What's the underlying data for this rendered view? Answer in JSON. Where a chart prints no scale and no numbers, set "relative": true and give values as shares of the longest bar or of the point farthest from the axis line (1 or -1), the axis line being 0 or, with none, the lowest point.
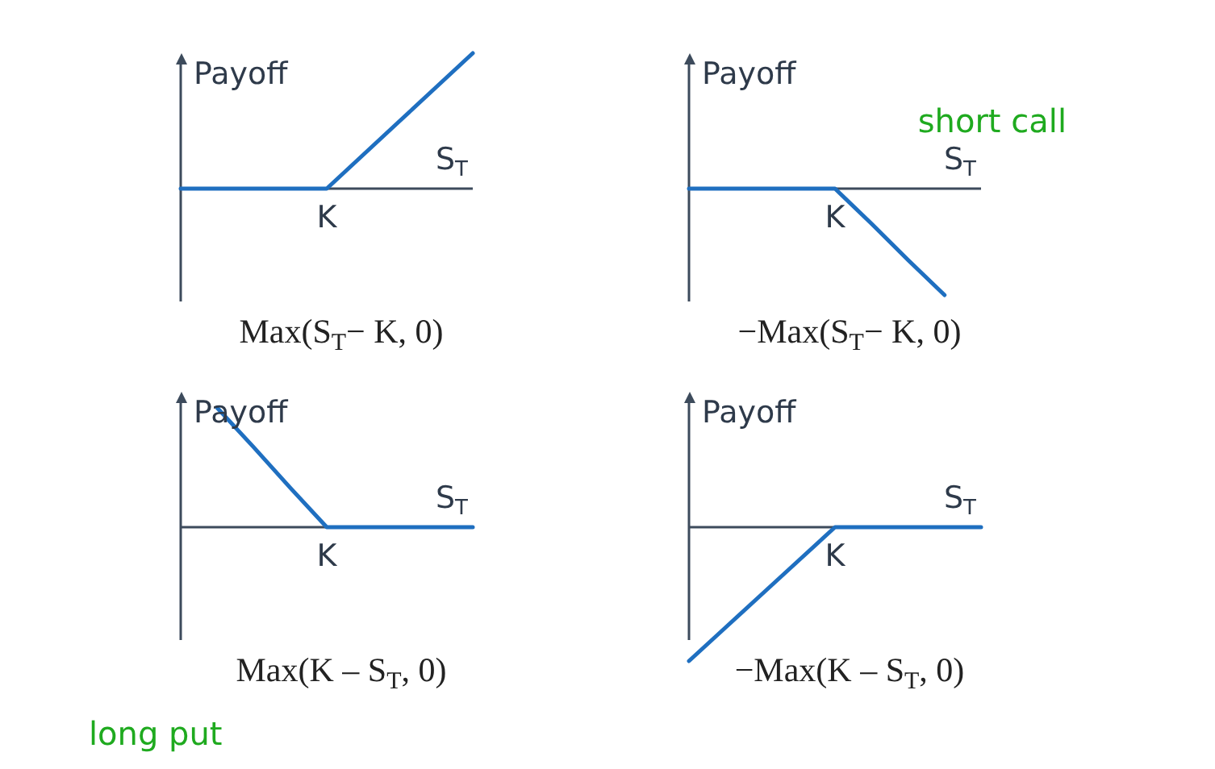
{
  "chart_data": [
    {
      "type": "line",
      "relative": true,
      "title": "Max(S$_{T}$− K, 0)",
      "xlabel": "S$_{T}$",
      "ylabel": "Payoff",
      "marker": "none",
      "annotations": [
        {
          "text": "K",
          "y": 0
        }
      ],
      "categories": [
        null,
        null,
        null,
        null,
        null,
        null,
        null,
        null,
        null
      ],
      "series": [
        {
          "color": "#1f6fc0",
          "values": [
            0,
            0,
            0,
            0,
            0,
            0.25,
            0.5,
            0.75,
            1
          ]
        }
      ]
    },
    {
      "type": "line",
      "relative": true,
      "title": "−Max(S$_{T}$− K, 0)",
      "xlabel": "S$_{T}$",
      "ylabel": "Payoff",
      "marker": "none",
      "annotations": [
        {
          "text": "K",
          "y": 0
        },
        "short call"
      ],
      "categories": [
        null,
        null,
        null,
        null,
        null,
        null,
        null,
        null,
        null
      ],
      "series": [
        {
          "color": "#1f6fc0",
          "values": [
            0,
            0,
            0,
            0,
            0,
            -0.33,
            -0.67,
            -1,
            null
          ]
        }
      ]
    },
    {
      "type": "line",
      "relative": true,
      "title": "Max(K – S$_{T}$, 0)",
      "xlabel": "S$_{T}$",
      "ylabel": "Payoff",
      "marker": "none",
      "annotations": [
        {
          "text": "K",
          "y": 0
        },
        "long put"
      ],
      "categories": [
        null,
        null,
        null,
        null,
        null,
        null,
        null,
        null,
        null
      ],
      "series": [
        {
          "color": "#1f6fc0",
          "values": [
            null,
            1,
            0.67,
            0.33,
            0,
            0,
            0,
            0,
            0
          ]
        }
      ]
    },
    {
      "type": "line",
      "relative": true,
      "title": "−Max(K – S$_{T}$, 0)",
      "xlabel": "S$_{T}$",
      "ylabel": "Payoff",
      "marker": "none",
      "annotations": [
        {
          "text": "K",
          "y": 0
        }
      ],
      "categories": [
        null,
        null,
        null,
        null,
        null,
        null,
        null,
        null,
        null
      ],
      "series": [
        {
          "color": "#1f6fc0",
          "values": [
            -1,
            -0.75,
            -0.5,
            -0.25,
            0,
            0,
            0,
            0,
            0
          ]
        }
      ]
    }
  ]
}
